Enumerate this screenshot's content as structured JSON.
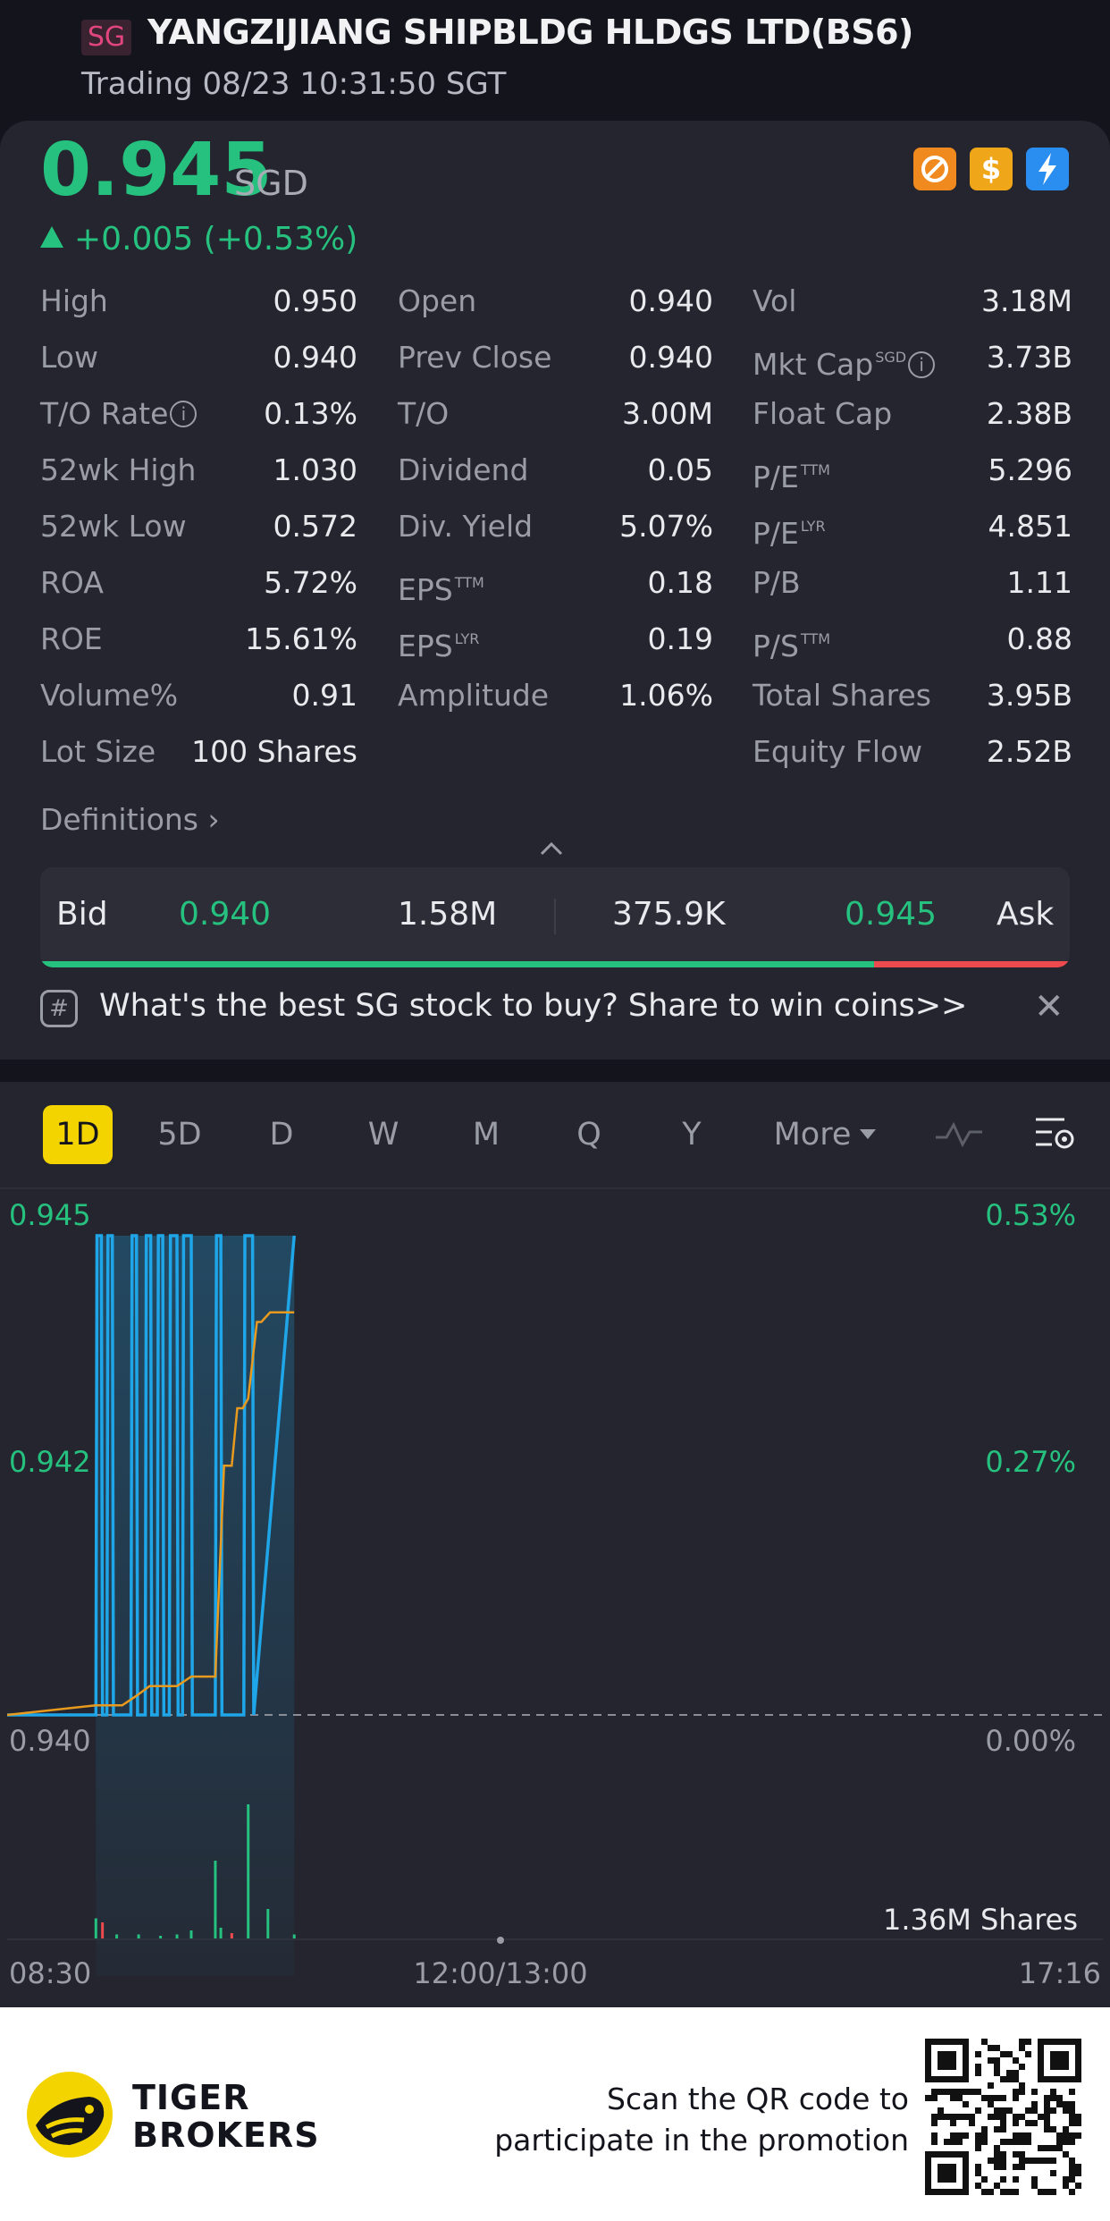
{
  "header": {
    "market_badge": "SG",
    "title": "YANGZIJIANG SHIPBLDG HLDGS LTD(BS6)",
    "status": "Trading 08/23 10:31:50 SGT"
  },
  "quote": {
    "price": "0.945",
    "currency": "SGD",
    "change": "+0.005 (+0.53%)",
    "icons": [
      "no-short-icon",
      "dividend-icon",
      "lightning-icon"
    ]
  },
  "stats": {
    "rows": [
      [
        {
          "label": "High",
          "value": "0.950"
        },
        {
          "label": "Open",
          "value": "0.940"
        },
        {
          "label": "Vol",
          "value": "3.18M"
        }
      ],
      [
        {
          "label": "Low",
          "value": "0.940"
        },
        {
          "label": "Prev Close",
          "value": "0.940"
        },
        {
          "label": "Mkt Cap",
          "sup": "SGD",
          "info": true,
          "value": "3.73B"
        }
      ],
      [
        {
          "label": "T/O Rate",
          "info": true,
          "value": "0.13%"
        },
        {
          "label": "T/O",
          "value": "3.00M"
        },
        {
          "label": "Float Cap",
          "value": "2.38B"
        }
      ],
      [
        {
          "label": "52wk High",
          "value": "1.030"
        },
        {
          "label": "Dividend",
          "value": "0.05"
        },
        {
          "label": "P/E",
          "sup": "TTM",
          "value": "5.296"
        }
      ],
      [
        {
          "label": "52wk Low",
          "value": "0.572"
        },
        {
          "label": "Div. Yield",
          "value": "5.07%"
        },
        {
          "label": "P/E",
          "sup": "LYR",
          "value": "4.851"
        }
      ],
      [
        {
          "label": "ROA",
          "value": "5.72%"
        },
        {
          "label": "EPS",
          "sup": "TTM",
          "value": "0.18"
        },
        {
          "label": "P/B",
          "value": "1.11"
        }
      ],
      [
        {
          "label": "ROE",
          "value": "15.61%"
        },
        {
          "label": "EPS",
          "sup": "LYR",
          "value": "0.19"
        },
        {
          "label": "P/S",
          "sup": "TTM",
          "value": "0.88"
        }
      ],
      [
        {
          "label": "Volume%",
          "value": "0.91"
        },
        {
          "label": "Amplitude",
          "value": "1.06%"
        },
        {
          "label": "Total Shares",
          "value": "3.95B"
        }
      ],
      [
        {
          "label": "Lot Size",
          "value": "100 Shares"
        },
        null,
        {
          "label": "Equity Flow",
          "value": "2.52B"
        }
      ]
    ],
    "definitions_label": "Definitions"
  },
  "bidask": {
    "bid_label": "Bid",
    "bid_price": "0.940",
    "bid_size": "1.58M",
    "ask_size": "375.9K",
    "ask_price": "0.945",
    "ask_label": "Ask",
    "bid_fraction": 0.81
  },
  "promo": {
    "text": "What's the best SG stock to buy? Share to win coins>>"
  },
  "periods": [
    "1D",
    "5D",
    "D",
    "W",
    "M",
    "Q",
    "Y"
  ],
  "period_active": "1D",
  "more_label": "More",
  "chart_data": {
    "type": "line",
    "y_left_ticks": [
      "0.945",
      "0.942",
      "0.940"
    ],
    "y_right_ticks": [
      "0.53%",
      "0.27%",
      "0.00%"
    ],
    "x_ticks": [
      "08:30",
      "12:00/13:00",
      "17:16"
    ],
    "ylim": [
      0.94,
      0.945
    ],
    "prev_close": 0.94,
    "volume_label": "1.36M Shares",
    "series": [
      {
        "color": "#1fa6e8",
        "x": [
          0,
          0.081,
          0.082,
          0.086,
          0.087,
          0.091,
          0.092,
          0.096,
          0.097,
          0.113,
          0.114,
          0.118,
          0.119,
          0.126,
          0.127,
          0.131,
          0.132,
          0.137,
          0.138,
          0.142,
          0.143,
          0.148,
          0.149,
          0.155,
          0.156,
          0.16,
          0.161,
          0.168,
          0.169,
          0.19,
          0.191,
          0.195,
          0.196,
          0.216,
          0.217,
          0.224,
          0.225,
          0.262
        ],
        "y": [
          0.94,
          0.94,
          0.945,
          0.945,
          0.94,
          0.94,
          0.945,
          0.945,
          0.94,
          0.94,
          0.945,
          0.945,
          0.94,
          0.94,
          0.945,
          0.945,
          0.94,
          0.94,
          0.945,
          0.945,
          0.94,
          0.94,
          0.945,
          0.945,
          0.94,
          0.94,
          0.945,
          0.945,
          0.94,
          0.94,
          0.945,
          0.945,
          0.94,
          0.94,
          0.945,
          0.945,
          0.94,
          0.945
        ]
      },
      {
        "color": "#e89a1f",
        "x": [
          0,
          0.081,
          0.09,
          0.105,
          0.118,
          0.13,
          0.14,
          0.155,
          0.168,
          0.18,
          0.19,
          0.198,
          0.205,
          0.21,
          0.215,
          0.22,
          0.228,
          0.232,
          0.24,
          0.262
        ],
        "y": [
          0.94,
          0.9401,
          0.9401,
          0.9401,
          0.9402,
          0.9403,
          0.9403,
          0.9403,
          0.9404,
          0.9404,
          0.9404,
          0.9426,
          0.9426,
          0.9432,
          0.9432,
          0.9433,
          0.9441,
          0.9441,
          0.9442,
          0.9442
        ]
      }
    ],
    "volume": [
      {
        "x": 0.081,
        "v": 0.15,
        "color": "#26c17f"
      },
      {
        "x": 0.087,
        "v": 0.12,
        "color": "#ec4a4e"
      },
      {
        "x": 0.1,
        "v": 0.03,
        "color": "#26c17f"
      },
      {
        "x": 0.12,
        "v": 0.03,
        "color": "#26c17f"
      },
      {
        "x": 0.14,
        "v": 0.02,
        "color": "#26c17f"
      },
      {
        "x": 0.155,
        "v": 0.03,
        "color": "#26c17f"
      },
      {
        "x": 0.168,
        "v": 0.06,
        "color": "#26c17f"
      },
      {
        "x": 0.19,
        "v": 0.58,
        "color": "#26c17f"
      },
      {
        "x": 0.195,
        "v": 0.08,
        "color": "#26c17f"
      },
      {
        "x": 0.205,
        "v": 0.04,
        "color": "#ec4a4e"
      },
      {
        "x": 0.22,
        "v": 1.0,
        "color": "#26c17f"
      },
      {
        "x": 0.238,
        "v": 0.22,
        "color": "#26c17f"
      },
      {
        "x": 0.262,
        "v": 0.03,
        "color": "#26c17f"
      }
    ]
  },
  "footer": {
    "brand_line1": "TIGER",
    "brand_line2": "BROKERS",
    "scan_line1": "Scan the QR code to",
    "scan_line2": "participate in the promotion"
  }
}
